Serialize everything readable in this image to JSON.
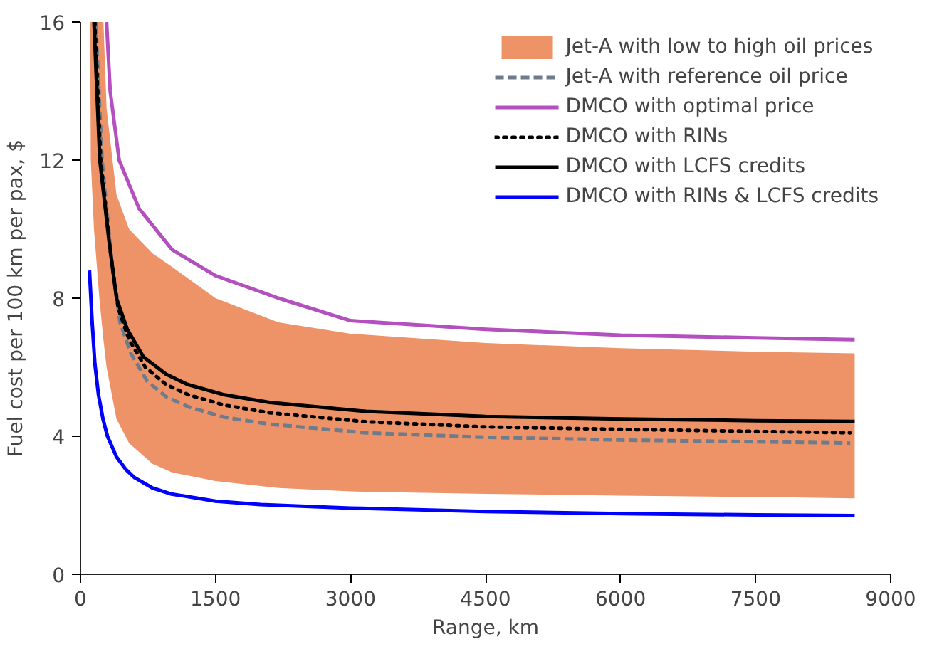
{
  "chart_data": {
    "type": "line",
    "xlabel": "Range, km",
    "ylabel": "Fuel cost per 100 km per pax, $",
    "xlim": [
      0,
      9000
    ],
    "xticks": [
      0,
      1500,
      3000,
      4500,
      6000,
      7500,
      9000
    ],
    "ylim": [
      0,
      16
    ],
    "yticks": [
      0,
      4,
      8,
      12,
      16
    ],
    "grid": false,
    "legend": "top right",
    "series": [
      {
        "name": "Jet-A with low to high oil prices",
        "type": "area",
        "color": "#ee9268",
        "x": [
          108,
          115,
          150,
          210,
          255,
          290,
          400,
          540,
          800,
          1020,
          1500,
          2200,
          3000,
          4500,
          6000,
          7500,
          8600
        ],
        "values": [
          null,
          null,
          null,
          null,
          null,
          null,
          null,
          null,
          null,
          null,
          null,
          null,
          null,
          null,
          null,
          null,
          null
        ],
        "upper": [
          16,
          16,
          16,
          16,
          16,
          13.5,
          11.0,
          10.0,
          9.3,
          8.9,
          8.0,
          7.3,
          6.97,
          6.7,
          6.55,
          6.45,
          6.4
        ],
        "lower": [
          16,
          12,
          10,
          8,
          6.8,
          6,
          4.5,
          3.8,
          3.2,
          2.95,
          2.7,
          2.5,
          2.4,
          2.33,
          2.28,
          2.24,
          2.2
        ]
      },
      {
        "name": "Jet-A with reference oil price",
        "color": "#6e7b8b",
        "line_style": "dashed",
        "x": [
          170,
          240,
          350,
          440,
          560,
          740,
          950,
          1200,
          1600,
          2100,
          3170,
          4500,
          6000,
          7500,
          8550
        ],
        "values": [
          16,
          12,
          9.0,
          7.3,
          6.4,
          5.6,
          5.15,
          4.85,
          4.55,
          4.35,
          4.1,
          3.97,
          3.89,
          3.84,
          3.8
        ]
      },
      {
        "name": "DMCO with optimal price",
        "color": "#b44fbf",
        "line_style": "solid",
        "x": [
          290,
          330,
          430,
          650,
          1020,
          1500,
          2200,
          3000,
          4500,
          6000,
          7500,
          8600
        ],
        "values": [
          16,
          14,
          12,
          10.6,
          9.4,
          8.65,
          8.0,
          7.35,
          7.1,
          6.93,
          6.85,
          6.8
        ]
      },
      {
        "name": "DMCO with RINs",
        "color": "#000000",
        "line_style": "dotted",
        "x": [
          160,
          225,
          330,
          420,
          540,
          720,
          950,
          1200,
          1600,
          2100,
          3170,
          4500,
          6000,
          7500,
          8550
        ],
        "values": [
          16,
          12,
          9.4,
          7.7,
          6.8,
          6.0,
          5.5,
          5.2,
          4.9,
          4.68,
          4.42,
          4.27,
          4.2,
          4.14,
          4.1
        ]
      },
      {
        "name": "DMCO with LCFS credits",
        "color": "#000000",
        "line_style": "solid",
        "x": [
          150,
          215,
          320,
          400,
          520,
          700,
          950,
          1190,
          1600,
          2100,
          3170,
          4500,
          6000,
          7500,
          8600
        ],
        "values": [
          16,
          12,
          9.6,
          8,
          7.1,
          6.3,
          5.8,
          5.5,
          5.2,
          4.98,
          4.72,
          4.57,
          4.5,
          4.45,
          4.43
        ]
      },
      {
        "name": "DMCO with RINs & LCFS credits",
        "color": "#0000ff",
        "line_style": "solid",
        "x": [
          100,
          130,
          160,
          200,
          250,
          300,
          400,
          500,
          600,
          800,
          1000,
          1500,
          2000,
          3000,
          4500,
          6000,
          7500,
          8600
        ],
        "values": [
          8.8,
          7.3,
          6.1,
          5.2,
          4.5,
          4.0,
          3.4,
          3.05,
          2.8,
          2.5,
          2.33,
          2.12,
          2.02,
          1.92,
          1.82,
          1.76,
          1.72,
          1.7
        ]
      }
    ]
  }
}
